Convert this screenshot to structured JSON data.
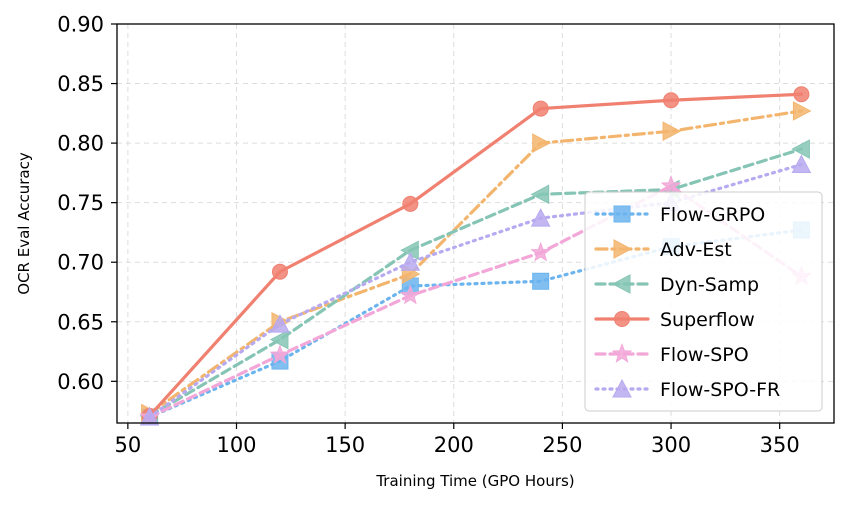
{
  "chart_data": {
    "type": "line",
    "title": "",
    "xlabel": "Training Time (GPO Hours)",
    "ylabel": "OCR Eval Accuracy",
    "xlim": [
      45,
      375
    ],
    "ylim": [
      0.565,
      0.9
    ],
    "xticks": [
      50,
      100,
      150,
      200,
      250,
      300,
      350
    ],
    "yticks": [
      0.6,
      0.65,
      0.7,
      0.75,
      0.8,
      0.85,
      0.9
    ],
    "xtick_labels": [
      "50",
      "100",
      "150",
      "200",
      "250",
      "300",
      "350"
    ],
    "ytick_labels": [
      "0.60",
      "0.65",
      "0.70",
      "0.75",
      "0.80",
      "0.85",
      "0.90"
    ],
    "grid": true,
    "legend_position": "lower-right",
    "x": [
      60,
      120,
      180,
      240,
      300,
      360
    ],
    "series": [
      {
        "name": "Flow-GRPO",
        "color": "#6cb4ee",
        "dash": "dotted",
        "marker": "square",
        "values": [
          0.57,
          0.617,
          0.68,
          0.684,
          0.713,
          0.727
        ]
      },
      {
        "name": "Adv-Est",
        "color": "#f3b56e",
        "dash": "dashdot",
        "marker": "triangle-right",
        "values": [
          0.573,
          0.65,
          0.69,
          0.8,
          0.81,
          0.827
        ]
      },
      {
        "name": "Dyn-Samp",
        "color": "#86c5b5",
        "dash": "dashed",
        "marker": "triangle-left",
        "values": [
          0.571,
          0.635,
          0.71,
          0.757,
          0.761,
          0.795
        ]
      },
      {
        "name": "Superflow",
        "color": "#f08070",
        "dash": "solid",
        "marker": "circle",
        "values": [
          0.571,
          0.692,
          0.749,
          0.829,
          0.836,
          0.841
        ]
      },
      {
        "name": "Flow-SPO",
        "color": "#f2a7d8",
        "dash": "dashed",
        "marker": "star",
        "values": [
          0.57,
          0.622,
          0.672,
          0.708,
          0.764,
          0.688
        ]
      },
      {
        "name": "Flow-SPO-FR",
        "color": "#b8aaf0",
        "dash": "dotted",
        "marker": "triangle-up",
        "values": [
          0.57,
          0.648,
          0.7,
          0.737,
          0.75,
          0.782
        ]
      }
    ]
  }
}
